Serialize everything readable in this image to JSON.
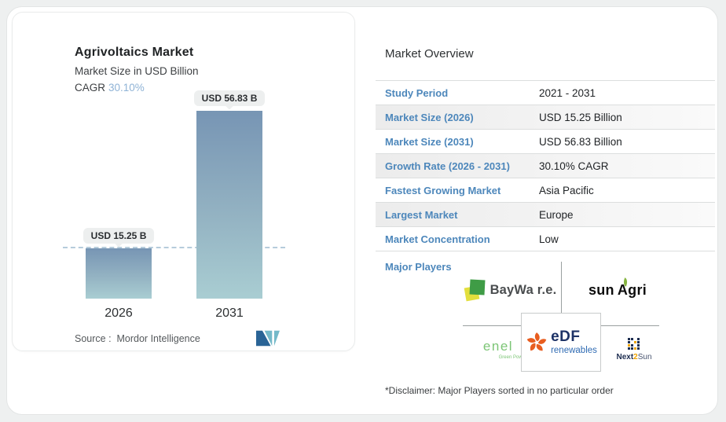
{
  "chart_card": {
    "title": "Agrivoltaics Market",
    "subtitle": "Market Size in USD Billion",
    "cagr_label": "CAGR",
    "cagr_value": "30.10%",
    "source_line": "Source :  Mordor Intelligence"
  },
  "chart_data": {
    "type": "bar",
    "title": "Agrivoltaics Market",
    "subtitle": "Market Size in USD Billion",
    "cagr": "30.10%",
    "categories": [
      "2026",
      "2031"
    ],
    "values": [
      15.25,
      56.83
    ],
    "bar_labels": [
      "USD 15.25 B",
      "USD 56.83 B"
    ],
    "unit": "USD Billion",
    "ylim": [
      0,
      56.83
    ],
    "reference_line_value": 15.25,
    "grid": false,
    "legend": false
  },
  "overview": {
    "title": "Market Overview",
    "rows": [
      {
        "label": "Study Period",
        "value": "2021 - 2031"
      },
      {
        "label": "Market Size (2026)",
        "value": "USD 15.25 Billion"
      },
      {
        "label": "Market Size (2031)",
        "value": "USD 56.83 Billion"
      },
      {
        "label": "Growth Rate (2026 - 2031)",
        "value": "30.10% CAGR"
      },
      {
        "label": "Fastest Growing Market",
        "value": "Asia Pacific"
      },
      {
        "label": "Largest Market",
        "value": "Europe"
      },
      {
        "label": "Market Concentration",
        "value": "Low"
      }
    ],
    "major_players_label": "Major Players",
    "disclaimer": "*Disclaimer: Major Players sorted in no particular order"
  },
  "players": {
    "baywa": "BayWa r.e.",
    "sunagri_pre": "sun",
    "sunagri_a": "A",
    "sunagri_post": "gri",
    "enel": "enel",
    "enel_sub": "Green Power",
    "edf_name": "eDF",
    "edf_sub": "renewables",
    "next2sun_pre": "Next",
    "next2sun_mid": "2",
    "next2sun_post": "Sun"
  },
  "icons": {
    "mordor_logo": "mordor-intelligence-logo",
    "baywa_squares": "baywa-squares-icon",
    "edf_flame": "edf-flame-icon",
    "next2sun_grid": "next2sun-grid-icon"
  },
  "colors": {
    "accent_blue": "#4d87bb",
    "cagr_blue": "#8fb3d6",
    "bar_gradient_top": "#7795b4",
    "bar_gradient_bottom": "#a9cdd2",
    "dashed_line": "#b6ccdb",
    "row_shade": "#ececec",
    "baywa_green": "#3f9c46",
    "baywa_yellow": "#e3df3d",
    "enel_green": "#7cc576",
    "edf_orange": "#e85d1f",
    "edf_navy": "#1d3266",
    "edf_blue": "#2f6bb3",
    "next2sun_navy": "#1d2d50",
    "next2sun_orange": "#f0a500",
    "mi_navy": "#2a6496",
    "mi_teal": "#74b9c9"
  }
}
